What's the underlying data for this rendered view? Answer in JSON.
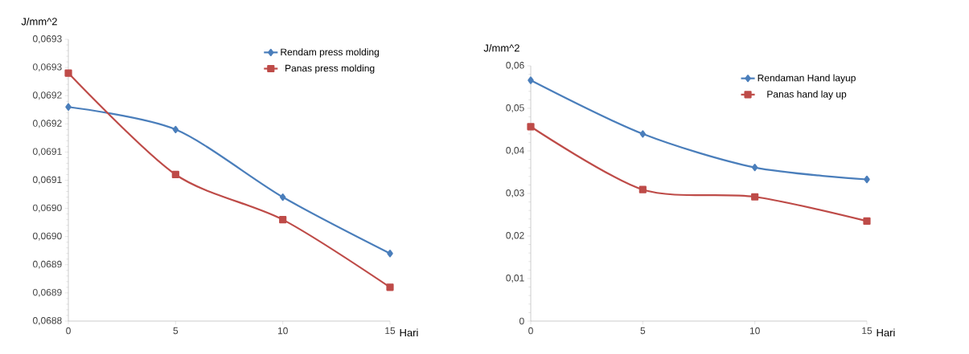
{
  "chart_data": [
    {
      "type": "line",
      "ylabel": "J/mm^2",
      "xlabel": "Hari",
      "x": [
        0,
        5,
        10,
        15
      ],
      "xlim": [
        0,
        15
      ],
      "xticks": [
        0,
        5,
        10,
        15
      ],
      "ylim": [
        0.0688,
        0.0693
      ],
      "yticks": [
        {
          "value": 0.0688,
          "label": "0,0688"
        },
        {
          "value": 0.06885,
          "label": "0,0689"
        },
        {
          "value": 0.0689,
          "label": "0,0689"
        },
        {
          "value": 0.06895,
          "label": "0,0690"
        },
        {
          "value": 0.069,
          "label": "0,0690"
        },
        {
          "value": 0.06905,
          "label": "0,0691"
        },
        {
          "value": 0.0691,
          "label": "0,0691"
        },
        {
          "value": 0.06915,
          "label": "0,0692"
        },
        {
          "value": 0.0692,
          "label": "0,0692"
        },
        {
          "value": 0.06925,
          "label": "0,0693"
        },
        {
          "value": 0.0693,
          "label": "0,0693"
        }
      ],
      "legend": "top right",
      "grid": false,
      "line_style": "solid",
      "series": [
        {
          "name": "Rendam press molding",
          "color": "#4a7ebb",
          "marker": "diamond",
          "values": [
            0.06918,
            0.06914,
            0.06902,
            0.06892
          ]
        },
        {
          "name": "Panas press molding",
          "color": "#be4b48",
          "marker": "square",
          "values": [
            0.06924,
            0.06906,
            0.06898,
            0.06886
          ]
        }
      ]
    },
    {
      "type": "line",
      "ylabel": "J/mm^2",
      "xlabel": "Hari",
      "x": [
        0,
        5,
        10,
        15
      ],
      "xlim": [
        0,
        15
      ],
      "xticks": [
        0,
        5,
        10,
        15
      ],
      "ylim": [
        0,
        0.06
      ],
      "yticks": [
        {
          "value": 0,
          "label": "0"
        },
        {
          "value": 0.01,
          "label": "0,01"
        },
        {
          "value": 0.02,
          "label": "0,02"
        },
        {
          "value": 0.03,
          "label": "0,03"
        },
        {
          "value": 0.04,
          "label": "0,04"
        },
        {
          "value": 0.05,
          "label": "0,05"
        },
        {
          "value": 0.06,
          "label": "0,06"
        }
      ],
      "legend": "top right",
      "grid": false,
      "line_style": "solid",
      "series": [
        {
          "name": "Rendaman Hand layup",
          "color": "#4a7ebb",
          "marker": "diamond",
          "values": [
            0.0566,
            0.044,
            0.0361,
            0.0333
          ]
        },
        {
          "name": "Panas hand lay up",
          "color": "#be4b48",
          "marker": "square",
          "values": [
            0.0457,
            0.0309,
            0.0292,
            0.0235
          ]
        }
      ]
    }
  ]
}
